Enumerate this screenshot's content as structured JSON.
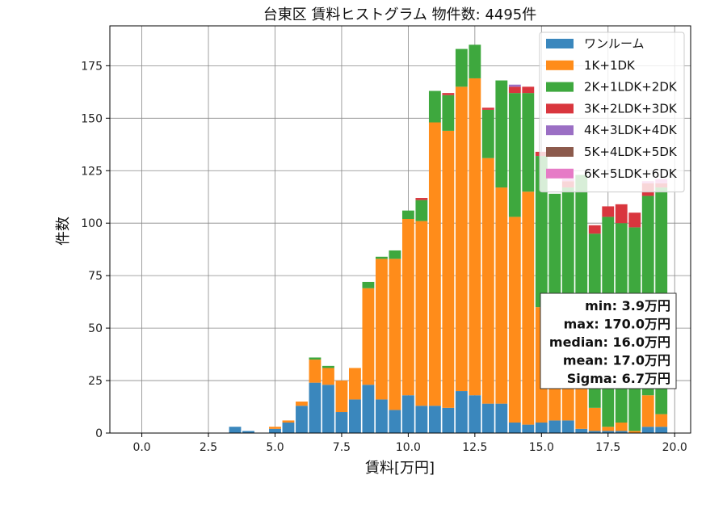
{
  "chart_data": {
    "type": "bar",
    "stacked": true,
    "title": "台東区 賃料ヒストグラム  物件数: 4495件",
    "xlabel": "賃料[万円]",
    "ylabel": "件数",
    "xlim": [
      -1.2,
      20.6
    ],
    "ylim": [
      0,
      194
    ],
    "grid": true,
    "legend_position": "top-right",
    "bin_width": 0.45,
    "x_ticks": [
      0,
      2.5,
      5,
      7.5,
      10,
      12.5,
      15,
      17.5,
      20
    ],
    "x_tick_labels": [
      "0.0",
      "2.5",
      "5.0",
      "7.5",
      "10.0",
      "12.5",
      "15.0",
      "17.5",
      "20.0"
    ],
    "y_ticks": [
      0,
      25,
      50,
      75,
      100,
      125,
      150,
      175
    ],
    "y_tick_labels": [
      "0",
      "25",
      "50",
      "75",
      "100",
      "125",
      "150",
      "175"
    ],
    "bins": [
      3.5,
      4.0,
      5.0,
      5.5,
      6.0,
      6.5,
      7.0,
      7.5,
      8.0,
      8.5,
      9.0,
      9.5,
      10.0,
      10.5,
      11.0,
      11.5,
      12.0,
      12.5,
      13.0,
      13.5,
      14.0,
      14.5,
      15.0,
      15.5,
      16.0,
      16.5,
      17.0,
      17.5,
      18.0,
      18.5,
      19.0,
      19.5
    ],
    "series": [
      {
        "name": "ワンルーム",
        "color": "#3a87bd",
        "values": [
          3,
          1,
          2,
          5,
          13,
          24,
          23,
          10,
          16,
          23,
          16,
          11,
          18,
          13,
          13,
          12,
          20,
          18,
          14,
          14,
          5,
          4,
          5,
          6,
          6,
          2,
          1,
          1,
          1,
          0,
          3,
          3
        ]
      },
      {
        "name": "1K+1DK",
        "color": "#ff8c1a",
        "values": [
          0,
          0,
          1,
          1,
          2,
          11,
          8,
          15,
          15,
          46,
          67,
          72,
          84,
          88,
          135,
          132,
          145,
          151,
          117,
          103,
          98,
          111,
          55,
          35,
          31,
          30,
          11,
          2,
          4,
          1,
          15,
          6
        ]
      },
      {
        "name": "2K+1LDK+2DK",
        "color": "#3ea83e",
        "values": [
          0,
          0,
          0,
          0,
          0,
          1,
          1,
          0,
          0,
          3,
          1,
          4,
          4,
          10,
          15,
          17,
          18,
          16,
          23,
          51,
          59,
          47,
          72,
          73,
          80,
          91,
          83,
          100,
          95,
          97,
          95,
          108
        ]
      },
      {
        "name": "3K+2LDK+3DK",
        "color": "#d9363e",
        "values": [
          0,
          0,
          0,
          0,
          0,
          0,
          0,
          0,
          0,
          0,
          0,
          0,
          0,
          1,
          0,
          1,
          0,
          0,
          1,
          0,
          3,
          3,
          2,
          0,
          3,
          0,
          4,
          5,
          9,
          7,
          6,
          2
        ]
      },
      {
        "name": "4K+3LDK+4DK",
        "color": "#9b6fc4",
        "values": [
          0,
          0,
          0,
          0,
          0,
          0,
          0,
          0,
          0,
          0,
          0,
          0,
          0,
          0,
          0,
          0,
          0,
          0,
          0,
          0,
          1,
          0,
          0,
          0,
          0,
          0,
          0,
          0,
          0,
          0,
          0,
          0
        ]
      },
      {
        "name": "5K+4LDK+5DK",
        "color": "#8c5a4c",
        "values": [
          0,
          0,
          0,
          0,
          0,
          0,
          0,
          0,
          0,
          0,
          0,
          0,
          0,
          0,
          0,
          0,
          0,
          0,
          0,
          0,
          0,
          0,
          0,
          0,
          0,
          0,
          0,
          0,
          0,
          0,
          0,
          0
        ]
      },
      {
        "name": "6K+5LDK+6DK",
        "color": "#e67bc6",
        "values": [
          0,
          0,
          0,
          0,
          0,
          0,
          0,
          0,
          0,
          0,
          0,
          0,
          0,
          0,
          0,
          0,
          0,
          0,
          0,
          0,
          0,
          0,
          0,
          0,
          1,
          0,
          0,
          0,
          0,
          0,
          1,
          2
        ]
      }
    ],
    "stats_box": {
      "lines": [
        "min: 3.9万円",
        "max: 170.0万円",
        "median: 16.0万円",
        "mean: 17.0万円",
        "Sigma: 6.7万円"
      ]
    }
  }
}
